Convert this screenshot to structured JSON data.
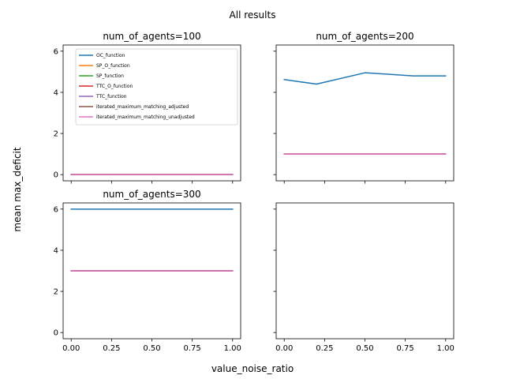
{
  "chart_data": {
    "type": "line",
    "title": "All results",
    "xlabel": "value_noise_ratio",
    "ylabel": "mean max_deficit",
    "ylim": [
      -0.3,
      6.3
    ],
    "xlim": [
      -0.05,
      1.05
    ],
    "y_ticks": [
      "0",
      "2",
      "4",
      "6"
    ],
    "x_ticks": [
      "0.00",
      "0.25",
      "0.50",
      "0.75",
      "1.00"
    ],
    "grid": false,
    "legend_placement": "upper-left of first panel",
    "series_styles": [
      {
        "name": "OC_function",
        "color": "#1f77b4"
      },
      {
        "name": "SP_O_function",
        "color": "#ff7f0e"
      },
      {
        "name": "SP_function",
        "color": "#2ca02c"
      },
      {
        "name": "TTC_O_function",
        "color": "#d62728"
      },
      {
        "name": "TTC_function",
        "color": "#9467bd"
      },
      {
        "name": "iterated_maximum_matching_adjusted",
        "color": "#8c564b"
      },
      {
        "name": "iterated_maximum_matching_unadjusted",
        "color": "#e377c2"
      }
    ],
    "panels": [
      {
        "title": "num_of_agents=100",
        "x": [
          0,
          0.2,
          0.5,
          0.8,
          1.0
        ],
        "series": [
          {
            "name": "OC_function",
            "values": [
              0,
              0,
              0,
              0,
              0
            ]
          },
          {
            "name": "SP_O_function",
            "values": [
              0,
              0,
              0,
              0,
              0
            ]
          },
          {
            "name": "SP_function",
            "values": [
              0,
              0,
              0,
              0,
              0
            ]
          },
          {
            "name": "TTC_O_function",
            "values": [
              0,
              0,
              0,
              0,
              0
            ]
          },
          {
            "name": "TTC_function",
            "values": [
              0,
              0,
              0,
              0,
              0
            ]
          },
          {
            "name": "iterated_maximum_matching_adjusted",
            "values": [
              0,
              0,
              0,
              0,
              0
            ]
          },
          {
            "name": "iterated_maximum_matching_unadjusted",
            "values": [
              0,
              0,
              0,
              0,
              0
            ]
          }
        ]
      },
      {
        "title": "num_of_agents=200",
        "x": [
          0,
          0.2,
          0.5,
          0.8,
          1.0
        ],
        "series": [
          {
            "name": "OC_function",
            "values": [
              4.62,
              4.4,
              4.95,
              4.8,
              4.8
            ]
          },
          {
            "name": "SP_O_function",
            "values": [
              1,
              1,
              1,
              1,
              1
            ]
          },
          {
            "name": "SP_function",
            "values": [
              1,
              1,
              1,
              1,
              1
            ]
          },
          {
            "name": "TTC_O_function",
            "values": [
              1,
              1,
              1,
              1,
              1
            ]
          },
          {
            "name": "TTC_function",
            "values": [
              1,
              1,
              1,
              1,
              1
            ]
          },
          {
            "name": "iterated_maximum_matching_adjusted",
            "values": [
              1,
              1,
              1,
              1,
              1
            ]
          },
          {
            "name": "iterated_maximum_matching_unadjusted",
            "values": [
              1,
              1,
              1,
              1,
              1
            ]
          }
        ]
      },
      {
        "title": "num_of_agents=300",
        "x": [
          0,
          0.2,
          0.5,
          0.8,
          1.0
        ],
        "series": [
          {
            "name": "OC_function",
            "values": [
              6,
              6,
              6,
              6,
              6
            ]
          },
          {
            "name": "SP_O_function",
            "values": [
              3,
              3,
              3,
              3,
              3
            ]
          },
          {
            "name": "SP_function",
            "values": [
              3,
              3,
              3,
              3,
              3
            ]
          },
          {
            "name": "TTC_O_function",
            "values": [
              3,
              3,
              3,
              3,
              3
            ]
          },
          {
            "name": "TTC_function",
            "values": [
              3,
              3,
              3,
              3,
              3
            ]
          },
          {
            "name": "iterated_maximum_matching_adjusted",
            "values": [
              3,
              3,
              3,
              3,
              3
            ]
          },
          {
            "name": "iterated_maximum_matching_unadjusted",
            "values": [
              3,
              3,
              3,
              3,
              3
            ]
          }
        ]
      },
      {
        "title": "",
        "x": [],
        "series": []
      }
    ]
  }
}
